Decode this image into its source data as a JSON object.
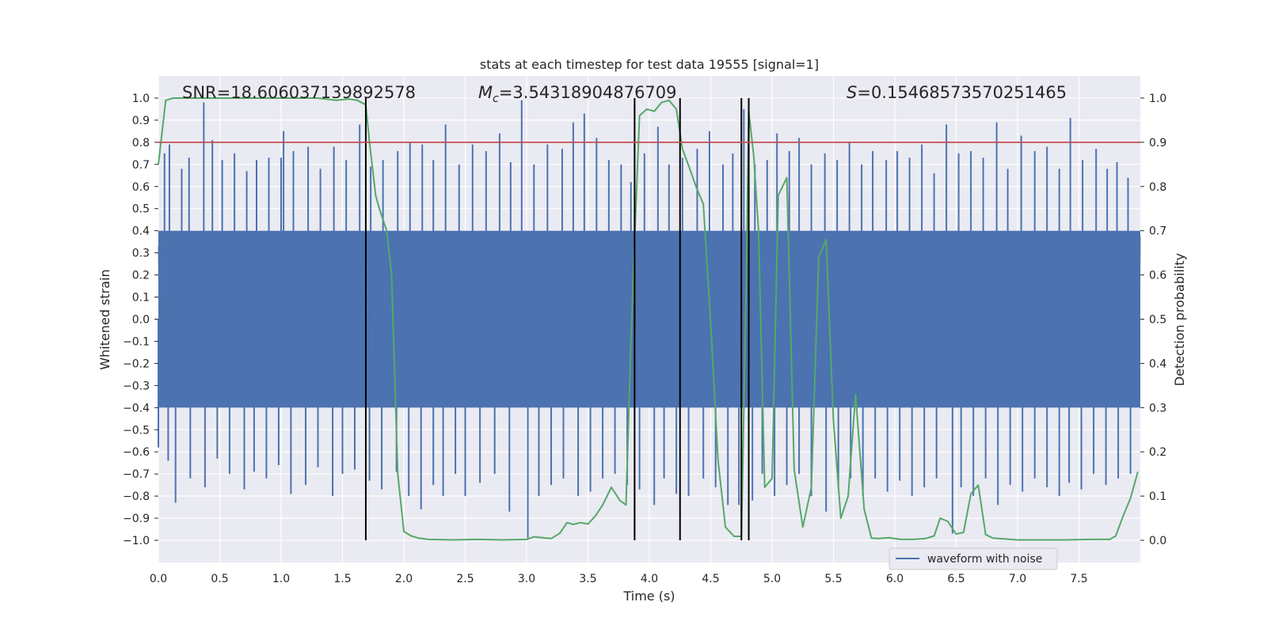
{
  "chart_data": {
    "type": "line",
    "title": "stats at each timestep for test data 19555 [signal=1]",
    "xlabel": "Time (s)",
    "ylabel_left": "Whitened strain",
    "ylabel_right": "Detection probability",
    "xlim": [
      0.0,
      8.0
    ],
    "ylim_left": [
      -1.1,
      1.1
    ],
    "ylim_right": [
      -0.05,
      1.05
    ],
    "x_ticks": [
      0.0,
      0.5,
      1.0,
      1.5,
      2.0,
      2.5,
      3.0,
      3.5,
      4.0,
      4.5,
      5.0,
      5.5,
      6.0,
      6.5,
      7.0,
      7.5
    ],
    "x_tick_labels": [
      "0.0",
      "0.5",
      "1.0",
      "1.5",
      "2.0",
      "2.5",
      "3.0",
      "3.5",
      "4.0",
      "4.5",
      "5.0",
      "5.5",
      "6.0",
      "6.5",
      "7.0",
      "7.5"
    ],
    "y_left_ticks": [
      1.0,
      0.9,
      0.8,
      0.7,
      0.6,
      0.5,
      0.4,
      0.3,
      0.2,
      0.1,
      0.0,
      -0.1,
      -0.2,
      -0.3,
      -0.4,
      -0.5,
      -0.6,
      -0.7,
      -0.8,
      -0.9,
      -1.0
    ],
    "y_left_tick_labels": [
      "1.0",
      "0.9",
      "0.8",
      "0.7",
      "0.6",
      "0.5",
      "0.4",
      "0.3",
      "0.2",
      "0.1",
      "0.0",
      "−0.1",
      "−0.2",
      "−0.3",
      "−0.4",
      "−0.5",
      "−0.6",
      "−0.7",
      "−0.8",
      "−0.9",
      "−1.0"
    ],
    "y_right_ticks": [
      1.0,
      0.9,
      0.8,
      0.7,
      0.6,
      0.5,
      0.4,
      0.3,
      0.2,
      0.1,
      0.0
    ],
    "y_right_tick_labels": [
      "1.0",
      "0.9",
      "0.8",
      "0.7",
      "0.6",
      "0.5",
      "0.4",
      "0.3",
      "0.2",
      "0.1",
      "0.0"
    ],
    "threshold": {
      "value": 0.8,
      "axis": "left",
      "color": "#c44e52"
    },
    "vlines": [
      1.69,
      3.88,
      4.25,
      4.75,
      4.81
    ],
    "annotations": {
      "snr": "SNR=18.606037139892578",
      "mc_label": "M",
      "mc_sub": "c",
      "mc_value": "=3.54318904876709",
      "s_label": "S",
      "s_value": "=0.15468573570251465"
    },
    "waveform": {
      "name": "waveform with noise",
      "color": "#4c72b0",
      "sample_step": 0.01,
      "core_range": [
        -0.4,
        0.4
      ],
      "spikes_positive": [
        [
          0.05,
          0.75
        ],
        [
          0.09,
          0.79
        ],
        [
          0.19,
          0.68
        ],
        [
          0.25,
          0.73
        ],
        [
          0.37,
          0.98
        ],
        [
          0.44,
          0.81
        ],
        [
          0.52,
          0.72
        ],
        [
          0.62,
          0.75
        ],
        [
          0.72,
          0.67
        ],
        [
          0.8,
          0.72
        ],
        [
          0.9,
          0.73
        ],
        [
          1.0,
          0.73
        ],
        [
          1.02,
          0.85
        ],
        [
          1.1,
          0.76
        ],
        [
          1.22,
          0.78
        ],
        [
          1.32,
          0.68
        ],
        [
          1.43,
          0.78
        ],
        [
          1.53,
          0.72
        ],
        [
          1.64,
          0.88
        ],
        [
          1.73,
          0.69
        ],
        [
          1.83,
          0.72
        ],
        [
          1.95,
          0.76
        ],
        [
          2.05,
          0.8
        ],
        [
          2.15,
          0.79
        ],
        [
          2.24,
          0.72
        ],
        [
          2.34,
          0.88
        ],
        [
          2.45,
          0.7
        ],
        [
          2.56,
          0.79
        ],
        [
          2.67,
          0.76
        ],
        [
          2.78,
          0.84
        ],
        [
          2.87,
          0.71
        ],
        [
          2.96,
          0.99
        ],
        [
          3.06,
          0.7
        ],
        [
          3.17,
          0.79
        ],
        [
          3.29,
          0.77
        ],
        [
          3.38,
          0.89
        ],
        [
          3.47,
          0.93
        ],
        [
          3.57,
          0.82
        ],
        [
          3.67,
          0.72
        ],
        [
          3.77,
          0.7
        ],
        [
          3.85,
          0.62
        ],
        [
          3.96,
          0.75
        ],
        [
          4.07,
          0.87
        ],
        [
          4.16,
          0.7
        ],
        [
          4.27,
          0.73
        ],
        [
          4.39,
          0.77
        ],
        [
          4.49,
          0.85
        ],
        [
          4.6,
          0.7
        ],
        [
          4.68,
          0.75
        ],
        [
          4.77,
          0.95
        ],
        [
          4.86,
          0.7
        ],
        [
          4.96,
          0.72
        ],
        [
          5.04,
          0.84
        ],
        [
          5.14,
          0.76
        ],
        [
          5.22,
          0.82
        ],
        [
          5.32,
          0.7
        ],
        [
          5.43,
          0.75
        ],
        [
          5.53,
          0.72
        ],
        [
          5.63,
          0.8
        ],
        [
          5.73,
          0.7
        ],
        [
          5.82,
          0.76
        ],
        [
          5.93,
          0.72
        ],
        [
          6.02,
          0.76
        ],
        [
          6.12,
          0.73
        ],
        [
          6.22,
          0.79
        ],
        [
          6.32,
          0.66
        ],
        [
          6.42,
          0.88
        ],
        [
          6.52,
          0.75
        ],
        [
          6.62,
          0.76
        ],
        [
          6.72,
          0.73
        ],
        [
          6.83,
          0.89
        ],
        [
          6.92,
          0.68
        ],
        [
          7.03,
          0.83
        ],
        [
          7.14,
          0.76
        ],
        [
          7.24,
          0.78
        ],
        [
          7.34,
          0.68
        ],
        [
          7.43,
          0.91
        ],
        [
          7.53,
          0.72
        ],
        [
          7.64,
          0.77
        ],
        [
          7.73,
          0.68
        ],
        [
          7.81,
          0.71
        ],
        [
          7.9,
          0.64
        ]
      ],
      "spikes_negative": [
        [
          0.0,
          -0.58
        ],
        [
          0.08,
          -0.64
        ],
        [
          0.14,
          -0.83
        ],
        [
          0.26,
          -0.72
        ],
        [
          0.38,
          -0.76
        ],
        [
          0.48,
          -0.63
        ],
        [
          0.58,
          -0.7
        ],
        [
          0.7,
          -0.77
        ],
        [
          0.78,
          -0.69
        ],
        [
          0.88,
          -0.72
        ],
        [
          0.98,
          -0.66
        ],
        [
          1.08,
          -0.79
        ],
        [
          1.2,
          -0.75
        ],
        [
          1.3,
          -0.67
        ],
        [
          1.42,
          -0.8
        ],
        [
          1.5,
          -0.7
        ],
        [
          1.6,
          -0.68
        ],
        [
          1.72,
          -0.73
        ],
        [
          1.82,
          -0.77
        ],
        [
          1.94,
          -0.69
        ],
        [
          2.04,
          -0.8
        ],
        [
          2.14,
          -0.86
        ],
        [
          2.24,
          -0.75
        ],
        [
          2.32,
          -0.8
        ],
        [
          2.42,
          -0.7
        ],
        [
          2.5,
          -0.8
        ],
        [
          2.62,
          -0.74
        ],
        [
          2.74,
          -0.7
        ],
        [
          2.86,
          -0.87
        ],
        [
          3.01,
          -0.99
        ],
        [
          3.1,
          -0.8
        ],
        [
          3.2,
          -0.75
        ],
        [
          3.3,
          -0.72
        ],
        [
          3.42,
          -0.8
        ],
        [
          3.52,
          -0.78
        ],
        [
          3.62,
          -0.72
        ],
        [
          3.72,
          -0.7
        ],
        [
          3.82,
          -0.75
        ],
        [
          3.92,
          -0.77
        ],
        [
          4.04,
          -0.84
        ],
        [
          4.12,
          -0.72
        ],
        [
          4.22,
          -0.79
        ],
        [
          4.32,
          -0.8
        ],
        [
          4.44,
          -0.72
        ],
        [
          4.54,
          -0.76
        ],
        [
          4.64,
          -0.84
        ],
        [
          4.73,
          -0.84
        ],
        [
          4.84,
          -0.82
        ],
        [
          4.92,
          -0.7
        ],
        [
          5.02,
          -0.8
        ],
        [
          5.12,
          -0.75
        ],
        [
          5.22,
          -0.7
        ],
        [
          5.32,
          -0.8
        ],
        [
          5.44,
          -0.87
        ],
        [
          5.54,
          -0.76
        ],
        [
          5.64,
          -0.72
        ],
        [
          5.74,
          -0.8
        ],
        [
          5.84,
          -0.72
        ],
        [
          5.94,
          -0.78
        ],
        [
          6.04,
          -0.73
        ],
        [
          6.14,
          -0.8
        ],
        [
          6.24,
          -0.76
        ],
        [
          6.34,
          -0.72
        ],
        [
          6.47,
          -0.97
        ],
        [
          6.54,
          -0.76
        ],
        [
          6.64,
          -0.8
        ],
        [
          6.74,
          -0.72
        ],
        [
          6.84,
          -0.84
        ],
        [
          6.94,
          -0.75
        ],
        [
          7.04,
          -0.78
        ],
        [
          7.14,
          -0.72
        ],
        [
          7.24,
          -0.76
        ],
        [
          7.34,
          -0.8
        ],
        [
          7.42,
          -0.74
        ],
        [
          7.52,
          -0.77
        ],
        [
          7.62,
          -0.7
        ],
        [
          7.72,
          -0.75
        ],
        [
          7.82,
          -0.72
        ],
        [
          7.92,
          -0.7
        ]
      ]
    },
    "detection_probability": {
      "color": "#55a868",
      "x": [
        0.0,
        0.06,
        0.12,
        0.2,
        0.3,
        0.5,
        0.8,
        1.0,
        1.3,
        1.45,
        1.55,
        1.62,
        1.69,
        1.72,
        1.77,
        1.8,
        1.86,
        1.9,
        1.95,
        2.0,
        2.06,
        2.12,
        2.2,
        2.4,
        2.6,
        2.8,
        3.0,
        3.06,
        3.13,
        3.2,
        3.27,
        3.33,
        3.38,
        3.44,
        3.5,
        3.56,
        3.62,
        3.69,
        3.76,
        3.81,
        3.85,
        3.88,
        3.92,
        3.98,
        4.04,
        4.1,
        4.16,
        4.22,
        4.27,
        4.33,
        4.38,
        4.44,
        4.5,
        4.56,
        4.62,
        4.69,
        4.75,
        4.79,
        4.81,
        4.85,
        4.89,
        4.94,
        5.0,
        5.05,
        5.12,
        5.18,
        5.25,
        5.32,
        5.38,
        5.44,
        5.5,
        5.56,
        5.62,
        5.68,
        5.75,
        5.81,
        5.87,
        5.95,
        6.05,
        6.15,
        6.25,
        6.32,
        6.37,
        6.43,
        6.5,
        6.56,
        6.62,
        6.68,
        6.74,
        6.8,
        6.9,
        7.0,
        7.2,
        7.4,
        7.6,
        7.75,
        7.8,
        7.86,
        7.92,
        7.98
      ],
      "y": [
        0.85,
        0.995,
        1.0,
        1.0,
        1.0,
        1.0,
        1.0,
        1.0,
        1.0,
        0.995,
        0.998,
        0.995,
        0.985,
        0.9,
        0.78,
        0.75,
        0.7,
        0.6,
        0.15,
        0.02,
        0.01,
        0.005,
        0.002,
        0.001,
        0.002,
        0.001,
        0.002,
        0.008,
        0.006,
        0.004,
        0.016,
        0.04,
        0.036,
        0.04,
        0.037,
        0.055,
        0.08,
        0.12,
        0.09,
        0.08,
        0.45,
        0.68,
        0.96,
        0.975,
        0.97,
        0.99,
        0.995,
        0.975,
        0.885,
        0.84,
        0.8,
        0.76,
        0.49,
        0.18,
        0.03,
        0.009,
        0.009,
        0.6,
        0.97,
        0.87,
        0.7,
        0.12,
        0.14,
        0.78,
        0.82,
        0.16,
        0.03,
        0.12,
        0.64,
        0.68,
        0.27,
        0.05,
        0.1,
        0.33,
        0.07,
        0.005,
        0.004,
        0.006,
        0.002,
        0.002,
        0.004,
        0.01,
        0.05,
        0.043,
        0.014,
        0.018,
        0.105,
        0.125,
        0.013,
        0.005,
        0.003,
        0.001,
        0.001,
        0.001,
        0.002,
        0.002,
        0.01,
        0.055,
        0.095,
        0.155
      ]
    },
    "legend": {
      "placement": "lower-right"
    },
    "grid": true
  }
}
